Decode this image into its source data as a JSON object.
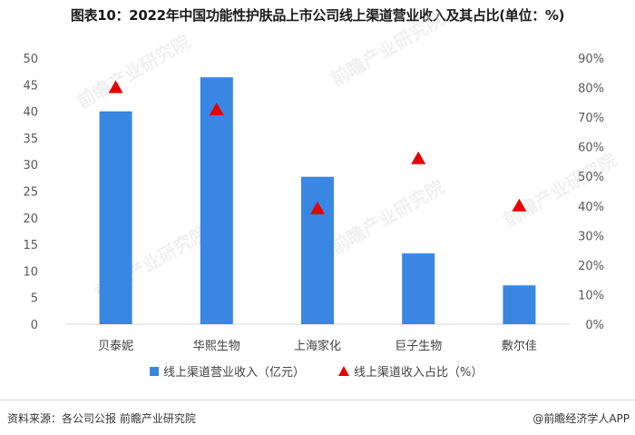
{
  "title": "图表10：2022年中国功能性护肤品上市公司线上渠道营业收入及其占比(单位：%)",
  "chart_data": {
    "type": "bar",
    "categories": [
      "贝泰妮",
      "华熙生物",
      "上海家化",
      "巨子生物",
      "敷尔佳"
    ],
    "series": [
      {
        "name": "线上渠道营业收入（亿元）",
        "type": "bar",
        "axis": "left",
        "values": [
          40.0,
          46.4,
          27.7,
          13.3,
          7.3
        ],
        "color": "#3a86e3"
      },
      {
        "name": "线上渠道收入占比（%）",
        "type": "scatter",
        "marker": "triangle",
        "axis": "right",
        "values": [
          80,
          72.5,
          39,
          56,
          40
        ],
        "color": "#e60000"
      }
    ],
    "y_left": {
      "min": 0,
      "max": 50,
      "step": 5,
      "ticks": [
        "0",
        "5",
        "10",
        "15",
        "20",
        "25",
        "30",
        "35",
        "40",
        "45",
        "50"
      ]
    },
    "y_right": {
      "min": 0,
      "max": 90,
      "step": 10,
      "ticks": [
        "0%",
        "10%",
        "20%",
        "30%",
        "40%",
        "50%",
        "60%",
        "70%",
        "80%",
        "90%"
      ]
    },
    "legend_position": "bottom",
    "grid": false
  },
  "watermark": "前瞻产业研究院",
  "footer": {
    "source": "资料来源：各公司公报 前瞻产业研究院",
    "brand": "@前瞻经济学人APP"
  }
}
